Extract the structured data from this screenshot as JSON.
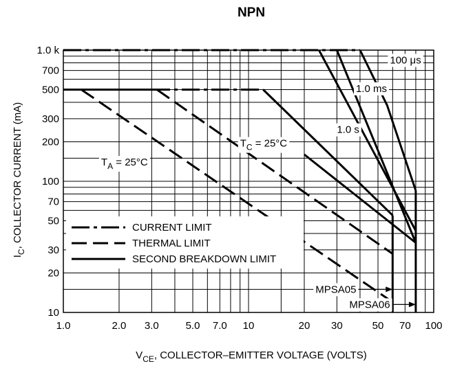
{
  "chart_data": {
    "type": "line",
    "title": "NPN",
    "xlabel_main": "V",
    "xlabel_sub": "CE",
    "xlabel_rest": ", COLLECTOR–EMITTER VOLTAGE (VOLTS)",
    "ylabel_main": "I",
    "ylabel_sub": "C",
    "ylabel_rest": ", COLLECTOR CURRENT (mA)",
    "x_scale": "log",
    "y_scale": "log",
    "xlim": [
      1,
      100
    ],
    "ylim": [
      10,
      1000
    ],
    "grid": true,
    "x_ticks": [
      {
        "value": 1,
        "label": "1.0"
      },
      {
        "value": 2,
        "label": "2.0"
      },
      {
        "value": 3,
        "label": "3.0"
      },
      {
        "value": 5,
        "label": "5.0"
      },
      {
        "value": 7,
        "label": "7.0"
      },
      {
        "value": 10,
        "label": "10"
      },
      {
        "value": 20,
        "label": "20"
      },
      {
        "value": 30,
        "label": "30"
      },
      {
        "value": 50,
        "label": "50"
      },
      {
        "value": 70,
        "label": "70"
      },
      {
        "value": 100,
        "label": "100"
      }
    ],
    "y_ticks": [
      {
        "value": 1000,
        "label": "1.0 k"
      },
      {
        "value": 700,
        "label": "700"
      },
      {
        "value": 500,
        "label": "500"
      },
      {
        "value": 300,
        "label": "300"
      },
      {
        "value": 200,
        "label": "200"
      },
      {
        "value": 100,
        "label": "100"
      },
      {
        "value": 70,
        "label": "70"
      },
      {
        "value": 50,
        "label": "50"
      },
      {
        "value": 30,
        "label": "30"
      },
      {
        "value": 20,
        "label": "20"
      },
      {
        "value": 10,
        "label": "10"
      }
    ],
    "x_grid": [
      1,
      2,
      3,
      4,
      5,
      6,
      7,
      8,
      9,
      10,
      15,
      20,
      30,
      40,
      50,
      60,
      70,
      80,
      90,
      100
    ],
    "y_grid": [
      10,
      15,
      20,
      30,
      40,
      50,
      60,
      70,
      80,
      90,
      100,
      150,
      200,
      300,
      400,
      500,
      600,
      700,
      800,
      900,
      1000
    ],
    "legend": {
      "placement": "bottom-left",
      "entries": [
        {
          "style": "dashdot",
          "label": "CURRENT LIMIT"
        },
        {
          "style": "dashed",
          "label": "THERMAL LIMIT"
        },
        {
          "style": "solid",
          "label": "SECOND BREAKDOWN LIMIT"
        }
      ]
    },
    "series": [
      {
        "style": "dashdot",
        "points": [
          [
            1,
            1000
          ],
          [
            40,
            1000
          ]
        ]
      },
      {
        "style": "dashdot",
        "points": [
          [
            1,
            500
          ],
          [
            12,
            500
          ]
        ]
      },
      {
        "style": "dashed",
        "points": [
          [
            1.25,
            500
          ],
          [
            60,
            12
          ]
        ]
      },
      {
        "style": "dashed",
        "points": [
          [
            3.2,
            500
          ],
          [
            60,
            28
          ]
        ]
      },
      {
        "style": "solid",
        "points": [
          [
            1,
            500
          ],
          [
            1.3,
            500
          ]
        ]
      },
      {
        "style": "solid",
        "points": [
          [
            1,
            500
          ],
          [
            3.2,
            500
          ]
        ]
      },
      {
        "style": "solid",
        "points": [
          [
            12,
            500
          ],
          [
            60,
            55
          ]
        ]
      },
      {
        "style": "solid",
        "points": [
          [
            20,
            160
          ],
          [
            80,
            34
          ]
        ]
      },
      {
        "style": "solid",
        "points": [
          [
            30,
            1000
          ],
          [
            80,
            34
          ]
        ]
      },
      {
        "style": "solid",
        "points": [
          [
            24,
            1000
          ],
          [
            80,
            42
          ]
        ]
      },
      {
        "style": "solid",
        "points": [
          [
            40,
            1000
          ],
          [
            56,
            380
          ],
          [
            80,
            85
          ]
        ]
      },
      {
        "style": "solid",
        "points": [
          [
            80,
            85
          ],
          [
            80,
            10
          ]
        ]
      },
      {
        "style": "solid",
        "points": [
          [
            60,
            55
          ],
          [
            60,
            10
          ]
        ]
      }
    ],
    "annotations": [
      {
        "text": "100 μs",
        "x": 58,
        "y": 840
      },
      {
        "text": "1.0 ms",
        "x": 38,
        "y": 510
      },
      {
        "text": "1.0 s",
        "x": 30,
        "y": 248
      },
      {
        "text_main": "T",
        "text_sub": "C",
        "text_rest": " = 25°C",
        "x": 9,
        "y": 195
      },
      {
        "text_main": "T",
        "text_sub": "A",
        "text_rest": " = 25°C",
        "x": 1.6,
        "y": 140
      },
      {
        "text": "MPSA05",
        "x": 23,
        "y": 15
      },
      {
        "text": "MPSA06",
        "x": 35,
        "y": 11.5
      }
    ]
  }
}
